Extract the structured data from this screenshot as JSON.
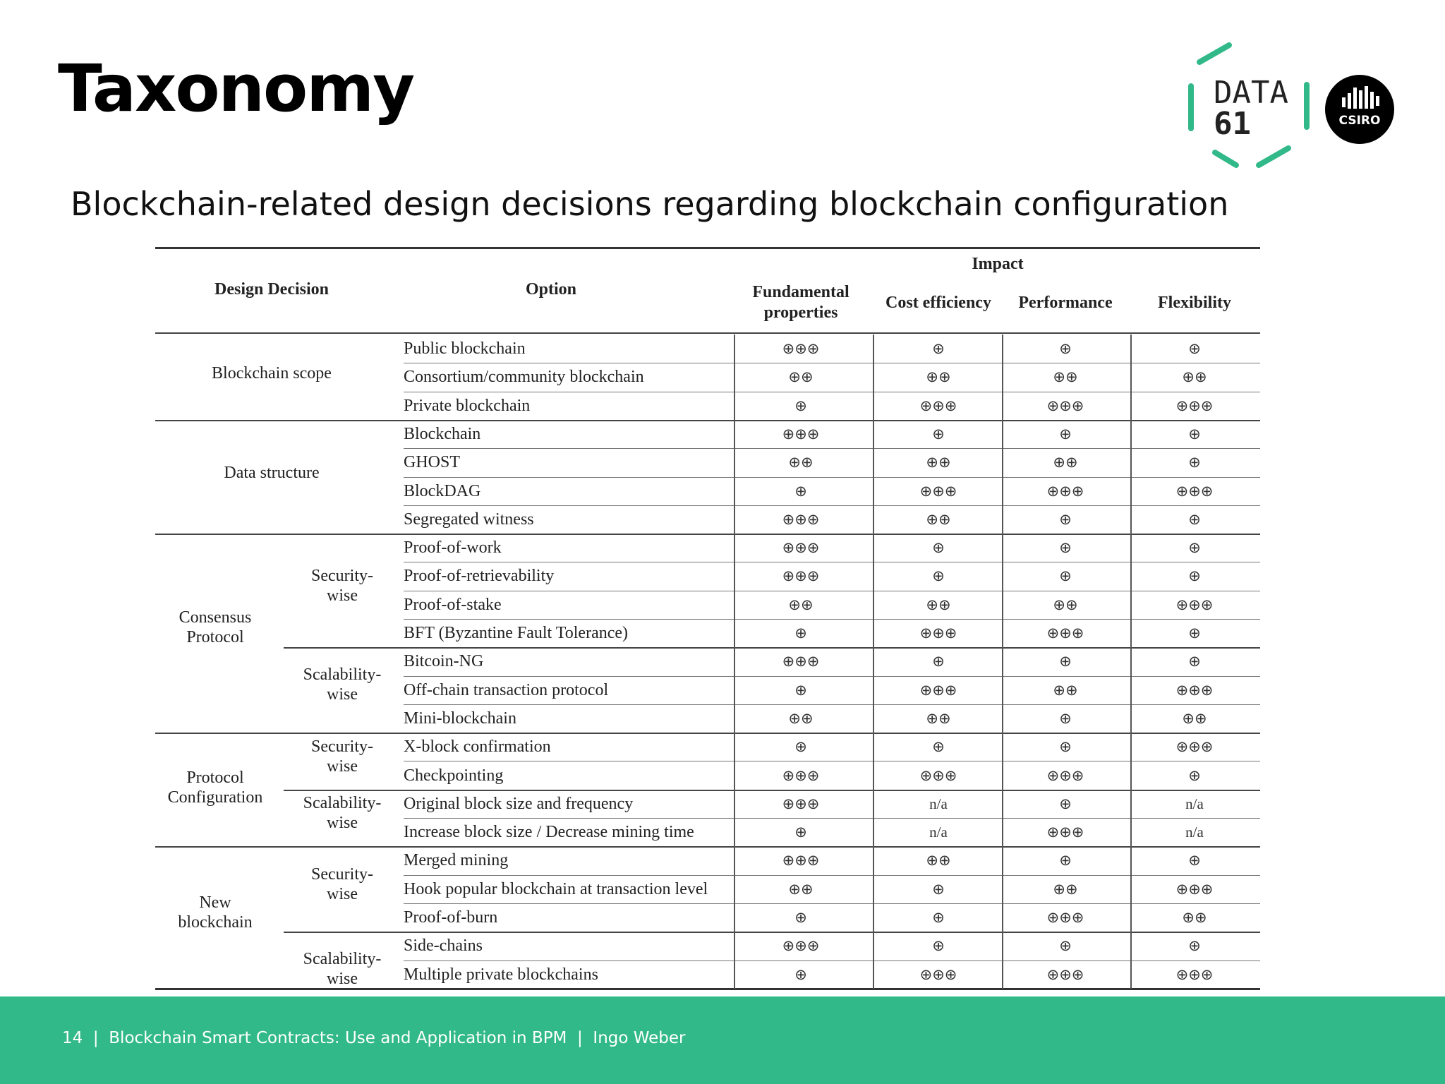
{
  "slide": {
    "title": "Taxonomy",
    "subtitle": "Blockchain-related design decisions regarding blockchain configuration"
  },
  "logos": {
    "data61_line1": "DATA",
    "data61_line2": "61",
    "csiro": "CSIRO",
    "accent_color": "#32b98a"
  },
  "footer": {
    "page_number": "14",
    "separator": "|",
    "course": "Blockchain Smart Contracts: Use and Application in BPM",
    "author": "Ingo Weber",
    "background_color": "#32b98a"
  },
  "table": {
    "headers": {
      "design_decision": "Design Decision",
      "option": "Option",
      "impact": "Impact",
      "fundamental_line1": "Fundamental",
      "fundamental_line2": "properties",
      "cost": "Cost efficiency",
      "performance": "Performance",
      "flexibility": "Flexibility"
    },
    "groups": [
      {
        "label": "Blockchain scope",
        "rows": 3
      },
      {
        "label": "Data structure",
        "rows": 4
      },
      {
        "label_line1": "Consensus",
        "label_line2": "Protocol",
        "rows": 7
      },
      {
        "label_line1": "Protocol",
        "label_line2": "Configuration",
        "rows": 4
      },
      {
        "label_line1": "New",
        "label_line2": "blockchain",
        "rows": 5
      }
    ],
    "subgroups": [
      {
        "line1": "Security-",
        "line2": "wise"
      },
      {
        "line1": "Scalability-",
        "line2": "wise"
      },
      {
        "line1": "Security-",
        "line2": "wise"
      },
      {
        "line1": "Scalability-",
        "line2": "wise"
      },
      {
        "line1": "Security-",
        "line2": "wise"
      },
      {
        "line1": "Scalability-",
        "line2": "wise"
      }
    ],
    "rows": [
      {
        "option": "Public blockchain",
        "fundamental": "⊕⊕⊕",
        "cost": "⊕",
        "performance": "⊕",
        "flexibility": "⊕"
      },
      {
        "option": "Consortium/community blockchain",
        "fundamental": "⊕⊕",
        "cost": "⊕⊕",
        "performance": "⊕⊕",
        "flexibility": "⊕⊕"
      },
      {
        "option": "Private blockchain",
        "fundamental": "⊕",
        "cost": "⊕⊕⊕",
        "performance": "⊕⊕⊕",
        "flexibility": "⊕⊕⊕"
      },
      {
        "option": "Blockchain",
        "fundamental": "⊕⊕⊕",
        "cost": "⊕",
        "performance": "⊕",
        "flexibility": "⊕"
      },
      {
        "option": "GHOST",
        "fundamental": "⊕⊕",
        "cost": "⊕⊕",
        "performance": "⊕⊕",
        "flexibility": "⊕"
      },
      {
        "option": "BlockDAG",
        "fundamental": "⊕",
        "cost": "⊕⊕⊕",
        "performance": "⊕⊕⊕",
        "flexibility": "⊕⊕⊕"
      },
      {
        "option": "Segregated witness",
        "fundamental": "⊕⊕⊕",
        "cost": "⊕⊕",
        "performance": "⊕",
        "flexibility": "⊕"
      },
      {
        "option": "Proof-of-work",
        "fundamental": "⊕⊕⊕",
        "cost": "⊕",
        "performance": "⊕",
        "flexibility": "⊕"
      },
      {
        "option": "Proof-of-retrievability",
        "fundamental": "⊕⊕⊕",
        "cost": "⊕",
        "performance": "⊕",
        "flexibility": "⊕"
      },
      {
        "option": "Proof-of-stake",
        "fundamental": "⊕⊕",
        "cost": "⊕⊕",
        "performance": "⊕⊕",
        "flexibility": "⊕⊕⊕"
      },
      {
        "option": "BFT (Byzantine Fault Tolerance)",
        "fundamental": "⊕",
        "cost": "⊕⊕⊕",
        "performance": "⊕⊕⊕",
        "flexibility": "⊕"
      },
      {
        "option": "Bitcoin-NG",
        "fundamental": "⊕⊕⊕",
        "cost": "⊕",
        "performance": "⊕",
        "flexibility": "⊕"
      },
      {
        "option": "Off-chain transaction protocol",
        "fundamental": "⊕",
        "cost": "⊕⊕⊕",
        "performance": "⊕⊕",
        "flexibility": "⊕⊕⊕"
      },
      {
        "option": "Mini-blockchain",
        "fundamental": "⊕⊕",
        "cost": "⊕⊕",
        "performance": "⊕",
        "flexibility": "⊕⊕"
      },
      {
        "option": "X-block confirmation",
        "fundamental": "⊕",
        "cost": "⊕",
        "performance": "⊕",
        "flexibility": "⊕⊕⊕"
      },
      {
        "option": "Checkpointing",
        "fundamental": "⊕⊕⊕",
        "cost": "⊕⊕⊕",
        "performance": "⊕⊕⊕",
        "flexibility": "⊕"
      },
      {
        "option": "Original block size and frequency",
        "fundamental": "⊕⊕⊕",
        "cost": "n/a",
        "performance": "⊕",
        "flexibility": "n/a"
      },
      {
        "option": "Increase block size / Decrease mining time",
        "fundamental": "⊕",
        "cost": "n/a",
        "performance": "⊕⊕⊕",
        "flexibility": "n/a"
      },
      {
        "option": "Merged mining",
        "fundamental": "⊕⊕⊕",
        "cost": "⊕⊕",
        "performance": "⊕",
        "flexibility": "⊕"
      },
      {
        "option": "Hook popular blockchain at transaction level",
        "fundamental": "⊕⊕",
        "cost": "⊕",
        "performance": "⊕⊕",
        "flexibility": "⊕⊕⊕"
      },
      {
        "option": "Proof-of-burn",
        "fundamental": "⊕",
        "cost": "⊕",
        "performance": "⊕⊕⊕",
        "flexibility": "⊕⊕"
      },
      {
        "option": "Side-chains",
        "fundamental": "⊕⊕⊕",
        "cost": "⊕",
        "performance": "⊕",
        "flexibility": "⊕"
      },
      {
        "option": "Multiple private blockchains",
        "fundamental": "⊕",
        "cost": "⊕⊕⊕",
        "performance": "⊕⊕⊕",
        "flexibility": "⊕⊕⊕"
      }
    ]
  }
}
